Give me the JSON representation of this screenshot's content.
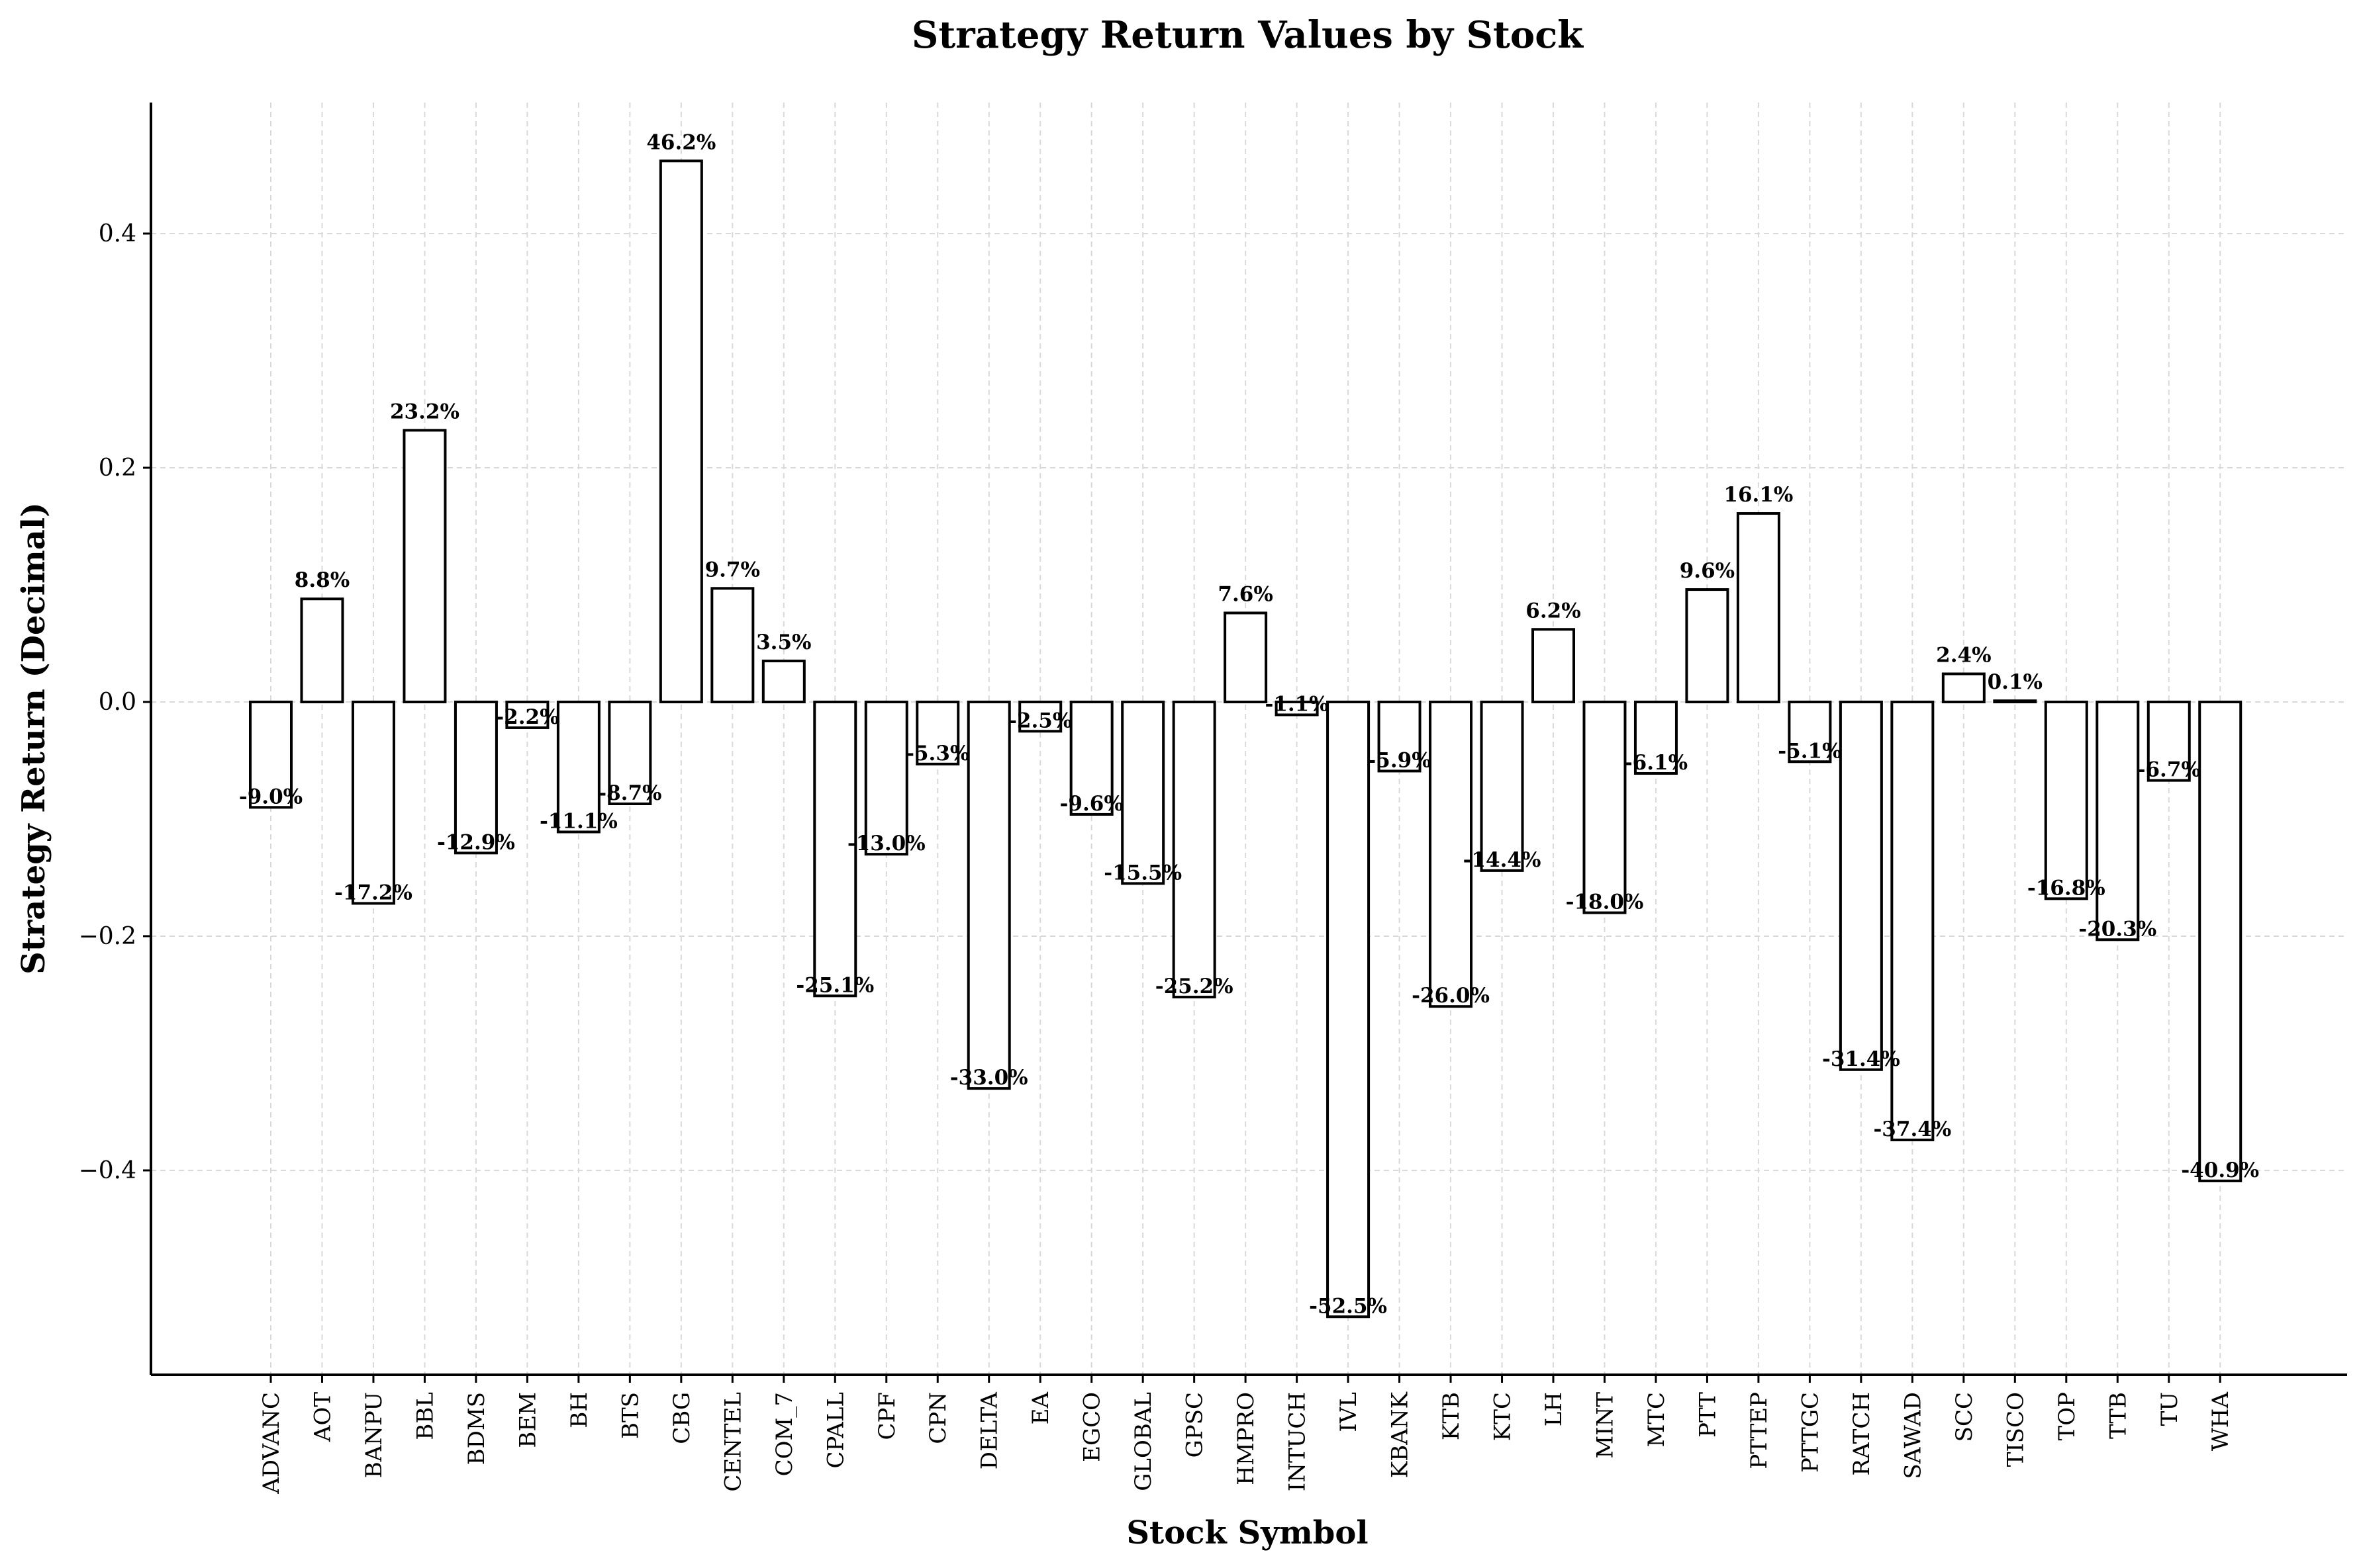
{
  "chart_data": {
    "type": "bar",
    "title": "Strategy Return Values by Stock",
    "xlabel": "Stock Symbol",
    "ylabel": "Strategy Return (Decimal)",
    "ylim": [
      -0.575,
      0.515
    ],
    "yticks": [
      -0.4,
      -0.2,
      0.0,
      0.2,
      0.4
    ],
    "ytick_labels": [
      "−0.4",
      "−0.2",
      "0.0",
      "0.2",
      "0.4"
    ],
    "grid": true,
    "categories": [
      "ADVANC",
      "AOT",
      "BANPU",
      "BBL",
      "BDMS",
      "BEM",
      "BH",
      "BTS",
      "CBG",
      "CENTEL",
      "COM_7",
      "CPALL",
      "CPF",
      "CPN",
      "DELTA",
      "EA",
      "EGCO",
      "GLOBAL",
      "GPSC",
      "HMPRO",
      "INTUCH",
      "IVL",
      "KBANK",
      "KTB",
      "KTC",
      "LH",
      "MINT",
      "MTC",
      "PTT",
      "PTTEP",
      "PTTGC",
      "RATCH",
      "SAWAD",
      "SCC",
      "TISCO",
      "TOP",
      "TTB",
      "TU",
      "WHA"
    ],
    "values": [
      -0.09,
      0.088,
      -0.172,
      0.232,
      -0.129,
      -0.022,
      -0.111,
      -0.087,
      0.462,
      0.097,
      0.035,
      -0.251,
      -0.13,
      -0.053,
      -0.33,
      -0.025,
      -0.096,
      -0.155,
      -0.252,
      0.076,
      -0.011,
      -0.525,
      -0.059,
      -0.26,
      -0.144,
      0.062,
      -0.18,
      -0.061,
      0.096,
      0.161,
      -0.051,
      -0.314,
      -0.374,
      0.024,
      0.001,
      -0.168,
      -0.203,
      -0.067,
      -0.409
    ],
    "data_labels": [
      "-9.0%",
      "8.8%",
      "-17.2%",
      "23.2%",
      "-12.9%",
      "-2.2%",
      "-11.1%",
      "-8.7%",
      "46.2%",
      "9.7%",
      "3.5%",
      "-25.1%",
      "-13.0%",
      "-5.3%",
      "-33.0%",
      "-2.5%",
      "-9.6%",
      "-15.5%",
      "-25.2%",
      "7.6%",
      "-1.1%",
      "-52.5%",
      "-5.9%",
      "-26.0%",
      "-14.4%",
      "6.2%",
      "-18.0%",
      "-6.1%",
      "9.6%",
      "16.1%",
      "-5.1%",
      "-31.4%",
      "-37.4%",
      "2.4%",
      "0.1%",
      "-16.8%",
      "-20.3%",
      "-6.7%",
      "-40.9%"
    ]
  }
}
